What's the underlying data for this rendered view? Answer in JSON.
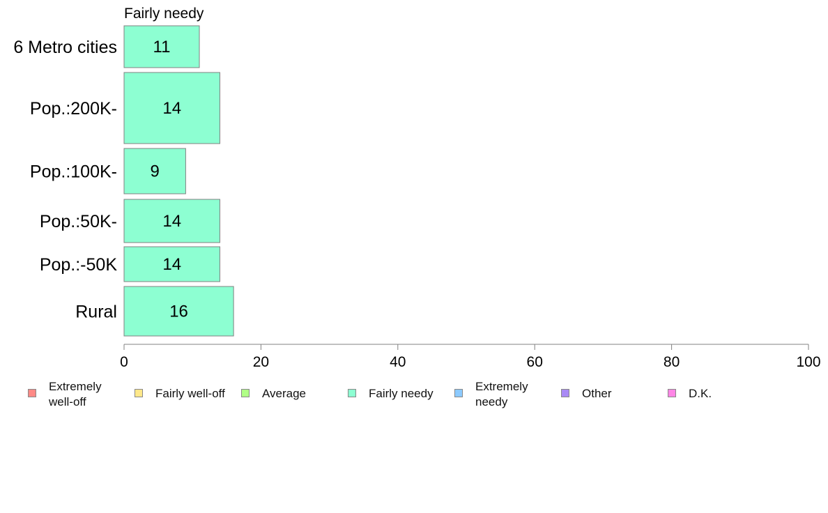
{
  "chart_data": {
    "type": "bar",
    "orientation": "horizontal",
    "title": "Fairly needy",
    "categories": [
      "6 Metro cities",
      "Pop.:200K-",
      "Pop.:100K-",
      "Pop.:50K-",
      "Pop.:-50K",
      "Rural"
    ],
    "series": [
      {
        "name": "Fairly needy",
        "values": [
          11,
          14,
          9,
          14,
          14,
          16
        ],
        "color": "#8dffd2"
      }
    ],
    "bar_labels": [
      "11",
      "14",
      "9",
      "14",
      "14",
      "16"
    ],
    "xlim": [
      0,
      100
    ],
    "xticks": [
      0,
      20,
      40,
      60,
      80,
      100
    ],
    "xlabel": "",
    "ylabel": "",
    "grid": false,
    "legend_position": "bottom"
  },
  "legend": [
    {
      "label": "Extremely well-off",
      "color": "#ff8a86"
    },
    {
      "label": "Fairly well-off",
      "color": "#ffe88a"
    },
    {
      "label": "Average",
      "color": "#b0ff86"
    },
    {
      "label": "Fairly needy",
      "color": "#8dffd2"
    },
    {
      "label": "Extremely needy",
      "color": "#8ccaff"
    },
    {
      "label": "Other",
      "color": "#a98af5"
    },
    {
      "label": "D.K.",
      "color": "#ff86e6"
    }
  ]
}
